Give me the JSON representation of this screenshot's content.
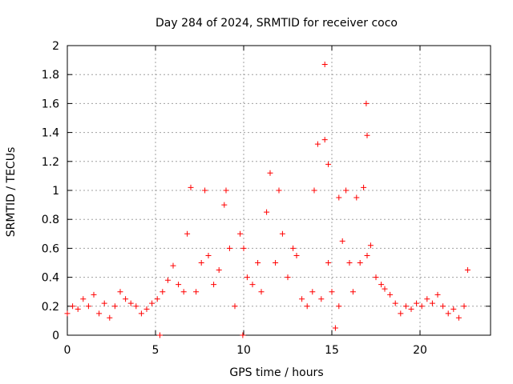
{
  "chart_data": {
    "type": "scatter",
    "title": "Day 284 of 2024, SRMTID for receiver coco",
    "xlabel": "GPS time / hours",
    "ylabel": "SRMTID / TECUs",
    "xlim": [
      0,
      24
    ],
    "ylim": [
      0,
      2
    ],
    "xticks": [
      0,
      5,
      10,
      15,
      20
    ],
    "xtick_labels": [
      "0",
      "5",
      "10",
      "15",
      "20"
    ],
    "yticks": [
      0,
      0.2,
      0.4,
      0.6,
      0.8,
      1,
      1.2,
      1.4,
      1.6,
      1.8,
      2
    ],
    "ytick_labels": [
      "0",
      "0.2",
      "0.4",
      "0.6",
      "0.8",
      "1",
      "1.2",
      "1.4",
      "1.6",
      "1.8",
      "2"
    ],
    "grid": true,
    "marker": "+",
    "color": "#ff0000",
    "series": [
      {
        "name": "SRMTID",
        "x": [
          0.0,
          0.3,
          0.6,
          0.9,
          1.2,
          1.5,
          1.8,
          2.1,
          2.4,
          2.7,
          3.0,
          3.3,
          3.6,
          3.9,
          4.2,
          4.5,
          4.8,
          5.1,
          5.4,
          5.7,
          6.0,
          6.3,
          6.6,
          6.8,
          7.0,
          7.3,
          7.6,
          7.8,
          8.0,
          8.3,
          8.6,
          8.9,
          9.0,
          9.2,
          9.5,
          9.8,
          10.0,
          10.2,
          10.5,
          10.8,
          11.0,
          11.3,
          11.5,
          11.8,
          12.0,
          12.2,
          12.5,
          12.8,
          13.0,
          13.3,
          13.6,
          13.9,
          14.0,
          14.2,
          14.4,
          14.6,
          14.8,
          15.0,
          15.2,
          15.4,
          15.6,
          15.8,
          16.0,
          16.2,
          16.4,
          16.6,
          16.8,
          17.0,
          17.2,
          17.5,
          17.8,
          18.0,
          18.3,
          18.6,
          18.9,
          19.2,
          19.5,
          19.8,
          20.1,
          20.4,
          20.7,
          21.0,
          21.3,
          21.6,
          21.9,
          22.2,
          22.5,
          22.7,
          5.25,
          9.95,
          14.6,
          16.95,
          17.0,
          14.8,
          15.4
        ],
        "y": [
          0.15,
          0.2,
          0.18,
          0.25,
          0.2,
          0.28,
          0.15,
          0.22,
          0.12,
          0.2,
          0.3,
          0.25,
          0.22,
          0.2,
          0.15,
          0.18,
          0.22,
          0.25,
          0.3,
          0.38,
          0.48,
          0.35,
          0.3,
          0.7,
          1.02,
          0.3,
          0.5,
          1.0,
          0.55,
          0.35,
          0.45,
          0.9,
          1.0,
          0.6,
          0.2,
          0.7,
          0.6,
          0.4,
          0.35,
          0.5,
          0.3,
          0.85,
          1.12,
          0.5,
          1.0,
          0.7,
          0.4,
          0.6,
          0.55,
          0.25,
          0.2,
          0.3,
          1.0,
          1.32,
          0.25,
          1.35,
          0.5,
          0.3,
          0.05,
          0.2,
          0.65,
          1.0,
          0.5,
          0.3,
          0.95,
          0.5,
          1.02,
          0.55,
          0.62,
          0.4,
          0.35,
          0.32,
          0.28,
          0.22,
          0.15,
          0.2,
          0.18,
          0.22,
          0.2,
          0.25,
          0.22,
          0.28,
          0.2,
          0.15,
          0.18,
          0.12,
          0.2,
          0.45,
          0.0,
          0.0,
          1.87,
          1.6,
          1.38,
          1.18,
          0.95
        ]
      }
    ]
  }
}
